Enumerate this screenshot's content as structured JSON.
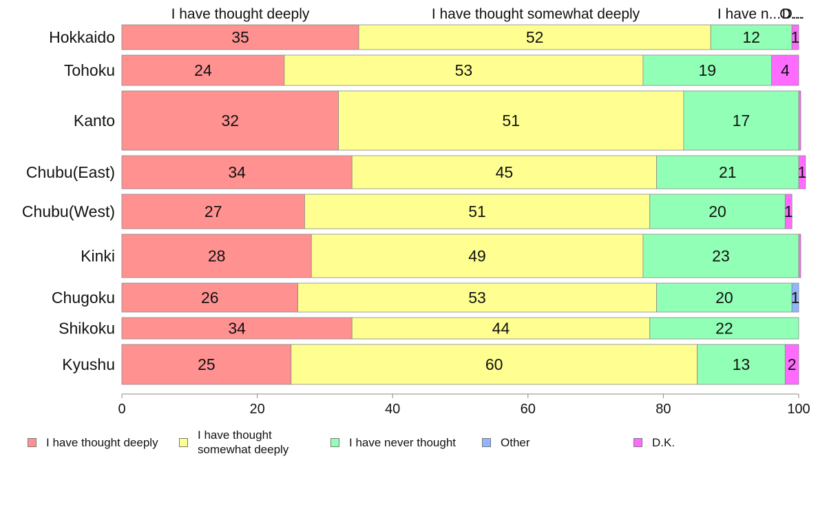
{
  "chart_data": {
    "type": "bar",
    "orientation": "horizontal",
    "stacked": true,
    "categories": [
      "Hokkaido",
      "Tohoku",
      "Kanto",
      "Chubu(East)",
      "Chubu(West)",
      "Kinki",
      "Chugoku",
      "Shikoku",
      "Kyushu"
    ],
    "series": [
      {
        "name": "I have thought deeply",
        "color": "#ff9191",
        "values": [
          35,
          24,
          32,
          34,
          27,
          28,
          26,
          34,
          25
        ]
      },
      {
        "name": "I have thought somewhat deeply",
        "color": "#ffff91",
        "values": [
          52,
          53,
          51,
          45,
          51,
          49,
          53,
          44,
          60
        ]
      },
      {
        "name": "I have never thought",
        "color": "#91ffb6",
        "values": [
          12,
          19,
          17,
          21,
          20,
          23,
          20,
          22,
          13
        ]
      },
      {
        "name": "Other",
        "color": "#91b6ff",
        "values": [
          0,
          0,
          0,
          0,
          0,
          0,
          1,
          0,
          0
        ]
      },
      {
        "name": "D.K.",
        "color": "#ff6bff",
        "values": [
          1,
          4,
          0.3,
          1,
          1,
          0.3,
          0,
          0,
          2
        ]
      }
    ],
    "header_labels": [
      "I have thought deeply",
      "I have thought somewhat deeply",
      "I have n...",
      "O...",
      "D..."
    ],
    "xlim": [
      0,
      100
    ],
    "xticks": [
      "0",
      "20",
      "40",
      "60",
      "80",
      "100"
    ],
    "grid": false,
    "legend_position": "bottom",
    "legend_labels": [
      "I have thought deeply",
      "I have thought somewhat deeply",
      "I have never thought",
      "Other",
      "D.K."
    ]
  }
}
